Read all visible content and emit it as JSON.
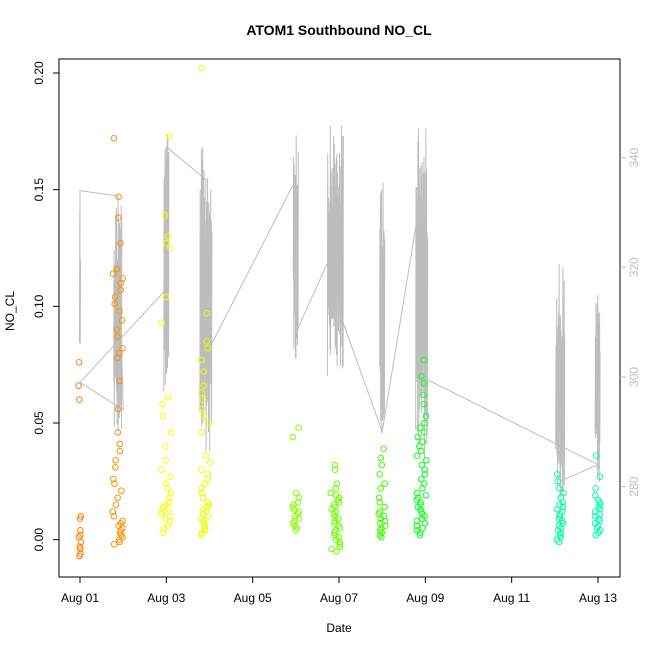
{
  "chart_data": {
    "type": "scatter",
    "title": "ATOM1 Southbound NO_CL",
    "xlabel": "Date",
    "ylabel": "NO_CL",
    "x_domain": [
      "2016-08-01",
      "2016-08-13"
    ],
    "x_ticks": [
      {
        "date": "2016-08-01",
        "label": "Aug 01"
      },
      {
        "date": "2016-08-03",
        "label": "Aug 03"
      },
      {
        "date": "2016-08-05",
        "label": "Aug 05"
      },
      {
        "date": "2016-08-07",
        "label": "Aug 07"
      },
      {
        "date": "2016-08-09",
        "label": "Aug 09"
      },
      {
        "date": "2016-08-11",
        "label": "Aug 11"
      },
      {
        "date": "2016-08-13",
        "label": "Aug 13"
      }
    ],
    "ylim": [
      -0.016,
      0.206
    ],
    "y_ticks": [
      0.0,
      0.05,
      0.1,
      0.15,
      0.2
    ],
    "y_tick_labels": [
      "0.00",
      "0.05",
      "0.10",
      "0.15",
      "0.20"
    ],
    "y2lim": [
      263.5,
      358.0
    ],
    "y2_ticks": [
      280,
      300,
      320,
      340
    ],
    "y2_tick_labels": [
      "280",
      "300",
      "320",
      "340"
    ],
    "grid": false,
    "colors": {
      "secondary_line": "#bdbdbd",
      "axis": "#000000",
      "point_colors": [
        "#FF8000",
        "#FFFF00",
        "#80FF00",
        "#00FF00",
        "#00FF80"
      ]
    },
    "point_groups": [
      {
        "date": "2016-08-01",
        "hour": 0.0,
        "color": "#FF8000",
        "values": [
          0.076,
          0.066,
          0.06,
          0.01,
          0.009,
          0.004,
          0.002,
          0.001,
          -0.001,
          -0.003,
          -0.004,
          -0.006,
          -0.007
        ]
      },
      {
        "date": "2016-08-01",
        "hour": 21.0,
        "color": "#FF9000",
        "values": [
          0.172,
          0.147,
          0.138,
          0.127,
          0.116,
          0.114,
          0.112,
          0.11,
          0.107,
          0.104,
          0.101,
          0.098,
          0.094,
          0.09,
          0.087,
          0.082,
          0.08,
          0.078,
          0.068,
          0.056,
          0.046,
          0.041,
          0.038,
          0.034,
          0.031,
          0.026,
          0.024,
          0.021,
          0.018,
          0.015,
          0.012,
          0.01,
          0.008,
          0.007,
          0.006,
          0.005,
          0.004,
          0.003,
          0.002,
          0.001,
          0.0,
          -0.001,
          -0.002
        ]
      },
      {
        "date": "2016-08-03",
        "hour": 0.0,
        "color": "#F8FF00",
        "values": [
          0.173,
          0.139,
          0.13,
          0.127,
          0.125,
          0.104,
          0.093,
          0.061,
          0.058,
          0.053,
          0.046,
          0.04,
          0.034,
          0.03,
          0.027,
          0.024,
          0.022,
          0.02,
          0.018,
          0.016,
          0.015,
          0.014,
          0.013,
          0.012,
          0.011,
          0.01,
          0.009,
          0.008,
          0.006,
          0.005,
          0.003
        ]
      },
      {
        "date": "2016-08-03",
        "hour": 22.0,
        "color": "#E8FF00",
        "values": [
          0.202,
          0.097,
          0.085,
          0.082,
          0.077,
          0.072,
          0.066,
          0.063,
          0.06,
          0.056,
          0.053,
          0.05,
          0.046,
          0.036,
          0.033,
          0.03,
          0.028,
          0.026,
          0.024,
          0.022,
          0.02,
          0.018,
          0.016,
          0.015,
          0.014,
          0.013,
          0.012,
          0.011,
          0.01,
          0.009,
          0.008,
          0.007,
          0.006,
          0.005,
          0.004,
          0.003,
          0.002
        ]
      },
      {
        "date": "2016-08-06",
        "hour": 0.0,
        "color": "#88FF00",
        "values": [
          0.048,
          0.044,
          0.02,
          0.018,
          0.016,
          0.015,
          0.014,
          0.013,
          0.012,
          0.011,
          0.01,
          0.009,
          0.008,
          0.007,
          0.006,
          0.005,
          0.004
        ]
      },
      {
        "date": "2016-08-06",
        "hour": 22.0,
        "color": "#70FF00",
        "values": [
          0.032,
          0.03,
          0.024,
          0.022,
          0.02,
          0.019,
          0.018,
          0.017,
          0.016,
          0.015,
          0.014,
          0.013,
          0.012,
          0.011,
          0.01,
          0.009,
          0.008,
          0.007,
          0.006,
          0.005,
          0.004,
          0.003,
          0.002,
          0.001,
          0.0,
          -0.001,
          -0.002,
          -0.003,
          -0.004,
          -0.005
        ]
      },
      {
        "date": "2016-08-08",
        "hour": 0.0,
        "color": "#40FF00",
        "values": [
          0.039,
          0.035,
          0.032,
          0.028,
          0.024,
          0.022,
          0.018,
          0.016,
          0.014,
          0.012,
          0.011,
          0.01,
          0.009,
          0.008,
          0.007,
          0.006,
          0.005,
          0.004,
          0.003,
          0.002,
          0.001
        ]
      },
      {
        "date": "2016-08-08",
        "hour": 22.0,
        "color": "#10FF20",
        "values": [
          0.077,
          0.07,
          0.067,
          0.062,
          0.058,
          0.053,
          0.05,
          0.048,
          0.046,
          0.044,
          0.042,
          0.04,
          0.038,
          0.036,
          0.034,
          0.032,
          0.03,
          0.028,
          0.026,
          0.024,
          0.022,
          0.02,
          0.019,
          0.018,
          0.017,
          0.016,
          0.015,
          0.014,
          0.013,
          0.012,
          0.011,
          0.01,
          0.009,
          0.008,
          0.007,
          0.006,
          0.005,
          0.004,
          0.003,
          0.002
        ]
      },
      {
        "date": "2016-08-12",
        "hour": 3.0,
        "color": "#00FFA0",
        "values": [
          0.028,
          0.025,
          0.022,
          0.02,
          0.018,
          0.016,
          0.015,
          0.014,
          0.013,
          0.012,
          0.011,
          0.01,
          0.009,
          0.008,
          0.007,
          0.006,
          0.005,
          0.004,
          0.003,
          0.002,
          0.001,
          0.0,
          -0.001
        ]
      },
      {
        "date": "2016-08-12",
        "hour": 23.8,
        "color": "#00FFB0",
        "values": [
          0.036,
          0.027,
          0.022,
          0.019,
          0.017,
          0.016,
          0.015,
          0.014,
          0.013,
          0.012,
          0.011,
          0.01,
          0.009,
          0.008,
          0.007,
          0.006,
          0.005,
          0.004,
          0.003,
          0.002
        ]
      }
    ],
    "secondary_series": {
      "note_free": true,
      "connections": [
        {
          "date": "2016-08-01",
          "hour": 0.0,
          "y2": 326
        },
        {
          "date": "2016-08-01",
          "hour": 0.0,
          "y2": 334
        },
        {
          "date": "2016-08-01",
          "hour": 21.0,
          "y2": 333
        },
        {
          "date": "2016-08-02",
          "hour": 0.0,
          "y2": 294
        },
        {
          "date": "2016-08-01",
          "hour": 0.0,
          "y2": 299
        },
        {
          "date": "2016-08-03",
          "hour": 0.0,
          "y2": 316
        },
        {
          "date": "2016-08-03",
          "hour": 0.0,
          "y2": 342
        },
        {
          "date": "2016-08-03",
          "hour": 22.0,
          "y2": 336
        },
        {
          "date": "2016-08-03",
          "hour": 22.0,
          "y2": 304
        },
        {
          "date": "2016-08-06",
          "hour": 0.0,
          "y2": 336
        },
        {
          "date": "2016-08-06",
          "hour": 0.0,
          "y2": 308
        },
        {
          "date": "2016-08-06",
          "hour": 22.0,
          "y2": 324
        },
        {
          "date": "2016-08-07",
          "hour": 0.0,
          "y2": 312
        },
        {
          "date": "2016-08-08",
          "hour": 0.0,
          "y2": 290
        },
        {
          "date": "2016-08-08",
          "hour": 22.0,
          "y2": 334
        },
        {
          "date": "2016-08-08",
          "hour": 22.0,
          "y2": 300
        },
        {
          "date": "2016-08-13",
          "hour": 0.0,
          "y2": 284
        },
        {
          "date": "2016-08-12",
          "hour": 3.0,
          "y2": 281
        }
      ]
    }
  }
}
